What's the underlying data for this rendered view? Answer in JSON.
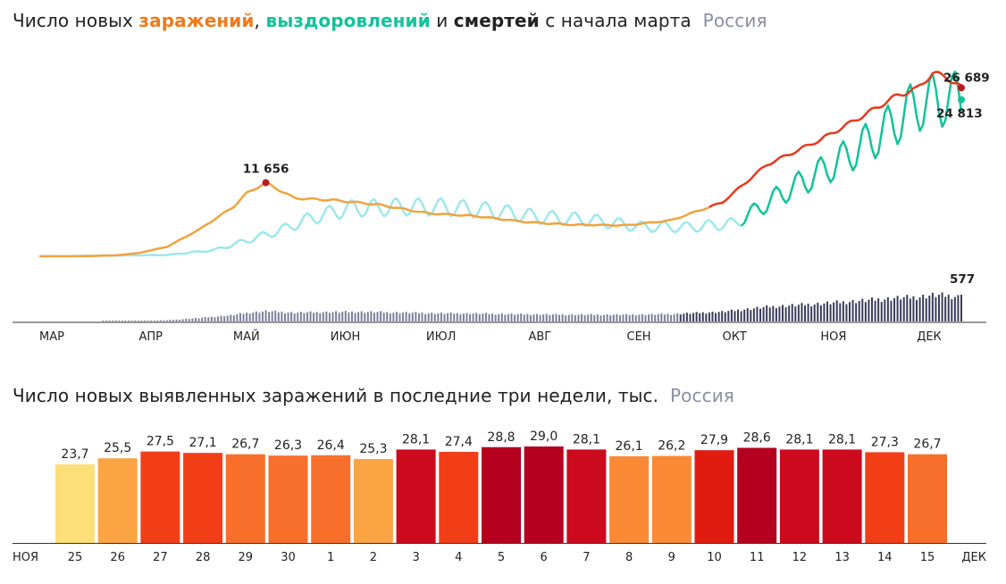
{
  "header": {
    "t1_prefix": "Число новых ",
    "t1_infections": "заражений",
    "t1_comma": ", ",
    "t1_recoveries": "выздоровлений",
    "t1_and": " и ",
    "t1_deaths": "смертей",
    "t1_suffix": " с начала марта",
    "t1_region": "Россия",
    "t2_text": "Число новых выявленных заражений в последние три недели, тыс.",
    "t2_region": "Россия"
  },
  "colors": {
    "infections_early": "#f0a340",
    "infections_late": "#e53a1e",
    "recoveries_early": "#9de8ec",
    "recoveries_late": "#12c39a",
    "deaths": "#3b3c5a",
    "peak_marker": "#b41e24"
  },
  "chart_data": [
    {
      "type": "line",
      "title": "Число новых заражений, выздоровлений и смертей с начала марта",
      "x_labels": [
        "МАР",
        "АПР",
        "МАЙ",
        "ИЮН",
        "ИЮЛ",
        "АВГ",
        "СЕН",
        "ОКТ",
        "НОЯ",
        "ДЕК"
      ],
      "x_range": [
        "2020-03-01",
        "2020-12-15"
      ],
      "series": [
        {
          "name": "заражений",
          "type": "line",
          "points": [
            [
              "2020-03-01",
              0
            ],
            [
              "2020-03-15",
              10
            ],
            [
              "2020-03-25",
              150
            ],
            [
              "2020-04-01",
              500
            ],
            [
              "2020-04-10",
              1500
            ],
            [
              "2020-04-20",
              4200
            ],
            [
              "2020-05-01",
              7900
            ],
            [
              "2020-05-05",
              10000
            ],
            [
              "2020-05-11",
              11656
            ],
            [
              "2020-05-20",
              9200
            ],
            [
              "2020-06-01",
              8900
            ],
            [
              "2020-06-15",
              8200
            ],
            [
              "2020-07-01",
              6800
            ],
            [
              "2020-07-15",
              6400
            ],
            [
              "2020-08-01",
              5400
            ],
            [
              "2020-08-15",
              5000
            ],
            [
              "2020-09-01",
              4900
            ],
            [
              "2020-09-15",
              5700
            ],
            [
              "2020-10-01",
              8500
            ],
            [
              "2020-10-15",
              14500
            ],
            [
              "2020-11-01",
              18500
            ],
            [
              "2020-11-15",
              22500
            ],
            [
              "2020-11-25",
              25500
            ],
            [
              "2020-12-01",
              26500
            ],
            [
              "2020-12-06",
              29000
            ],
            [
              "2020-12-10",
              28500
            ],
            [
              "2020-12-15",
              26689
            ]
          ]
        },
        {
          "name": "выздоровлений",
          "type": "line",
          "points": [
            [
              "2020-03-01",
              0
            ],
            [
              "2020-04-10",
              200
            ],
            [
              "2020-04-25",
              1000
            ],
            [
              "2020-05-05",
              2500
            ],
            [
              "2020-05-15",
              4000
            ],
            [
              "2020-05-25",
              6000
            ],
            [
              "2020-06-05",
              7500
            ],
            [
              "2020-06-20",
              7800
            ],
            [
              "2020-07-05",
              7800
            ],
            [
              "2020-07-20",
              7300
            ],
            [
              "2020-08-05",
              6200
            ],
            [
              "2020-08-20",
              5800
            ],
            [
              "2020-09-05",
              4700
            ],
            [
              "2020-09-20",
              4600
            ],
            [
              "2020-10-05",
              5200
            ],
            [
              "2020-10-20",
              10000
            ],
            [
              "2020-11-05",
              14500
            ],
            [
              "2020-11-20",
              19500
            ],
            [
              "2020-12-01",
              24000
            ],
            [
              "2020-12-10",
              25000
            ],
            [
              "2020-12-15",
              24813
            ]
          ]
        },
        {
          "name": "смертей",
          "type": "bar",
          "last_value": 577
        }
      ],
      "annotations": [
        {
          "x": "2020-05-11",
          "value": 11656,
          "label": "11 656"
        },
        {
          "x": "2020-12-15",
          "value": 26689,
          "label": "26 689"
        },
        {
          "x": "2020-12-15",
          "value": 24813,
          "label": "24 813"
        },
        {
          "x": "2020-12-15",
          "value": 577,
          "label": "577"
        }
      ],
      "grid": false,
      "legend": "in title"
    },
    {
      "type": "bar",
      "title": "Число новых выявленных заражений в последние три недели, тыс.",
      "start_label": "НОЯ",
      "end_label": "ДЕК",
      "categories": [
        "25",
        "26",
        "27",
        "28",
        "29",
        "30",
        "1",
        "2",
        "3",
        "4",
        "5",
        "6",
        "7",
        "8",
        "9",
        "10",
        "11",
        "12",
        "13",
        "14",
        "15"
      ],
      "values": [
        23.7,
        25.5,
        27.5,
        27.1,
        26.7,
        26.3,
        26.4,
        25.3,
        28.1,
        27.4,
        28.8,
        29.0,
        28.1,
        26.1,
        26.2,
        27.9,
        28.6,
        28.1,
        28.1,
        27.3,
        26.7
      ],
      "value_labels": [
        "23,7",
        "25,5",
        "27,5",
        "27,1",
        "26,7",
        "26,3",
        "26,4",
        "25,3",
        "28,1",
        "27,4",
        "28,8",
        "29,0",
        "28,1",
        "26,1",
        "26,2",
        "27,9",
        "28,6",
        "28,1",
        "28,1",
        "27,3",
        "26,7"
      ],
      "weekend": [
        false,
        false,
        false,
        true,
        true,
        false,
        false,
        false,
        false,
        false,
        true,
        true,
        false,
        false,
        false,
        false,
        false,
        true,
        true,
        false,
        false
      ],
      "ylim": [
        0,
        29
      ],
      "grid": false
    }
  ]
}
